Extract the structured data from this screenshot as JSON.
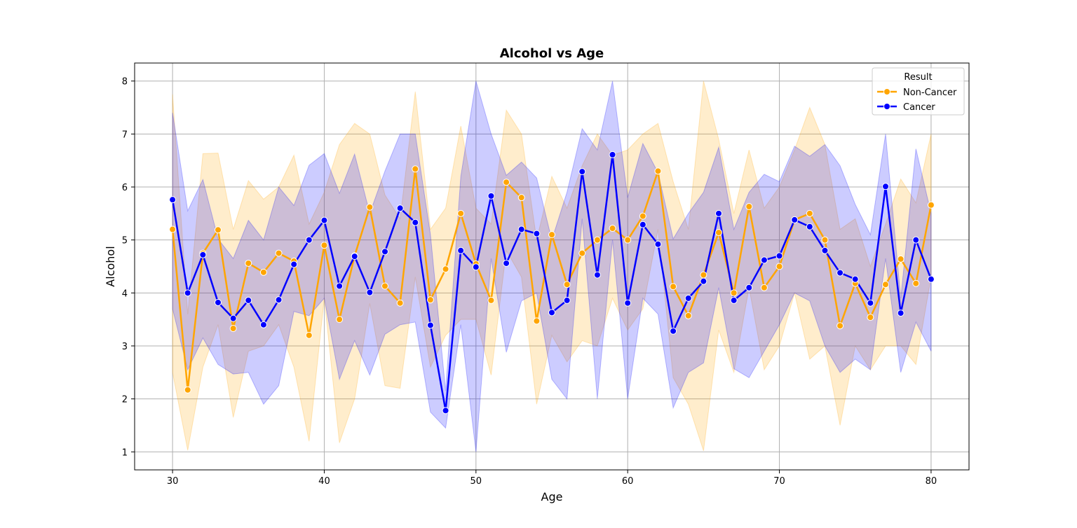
{
  "chart_data": {
    "type": "line",
    "title": "Alcohol vs Age",
    "xlabel": "Age",
    "ylabel": "Alcohol",
    "xlim": [
      27.5,
      82.5
    ],
    "ylim": [
      0.66,
      8.34
    ],
    "xticks": [
      30,
      40,
      50,
      60,
      70,
      80
    ],
    "yticks": [
      1,
      2,
      3,
      4,
      5,
      6,
      7,
      8
    ],
    "grid": true,
    "legend": {
      "title": "Result",
      "placement": "top-right"
    },
    "x": [
      30,
      31,
      32,
      33,
      34,
      35,
      36,
      37,
      38,
      39,
      40,
      41,
      42,
      43,
      44,
      45,
      46,
      47,
      48,
      49,
      50,
      51,
      52,
      53,
      54,
      55,
      56,
      57,
      58,
      59,
      60,
      61,
      62,
      63,
      64,
      65,
      66,
      67,
      68,
      69,
      70,
      71,
      72,
      73,
      74,
      75,
      76,
      77,
      78,
      79,
      80
    ],
    "series": [
      {
        "name": "Non-Cancer",
        "color": "#ffa500",
        "values": [
          5.2,
          2.17,
          4.75,
          5.19,
          3.33,
          4.56,
          4.39,
          4.75,
          4.6,
          3.2,
          4.9,
          3.5,
          4.7,
          5.62,
          4.13,
          3.81,
          6.34,
          3.87,
          4.45,
          5.5,
          4.55,
          3.86,
          6.09,
          5.8,
          3.47,
          5.1,
          4.16,
          4.75,
          5.0,
          5.22,
          5.0,
          5.45,
          6.3,
          4.12,
          3.57,
          4.34,
          5.14,
          4.0,
          5.63,
          4.1,
          4.5,
          5.38,
          5.5,
          5.0,
          3.38,
          4.18,
          3.54,
          4.16,
          4.64,
          4.18,
          5.66
        ],
        "lower": [
          2.5,
          1.03,
          2.6,
          3.4,
          1.65,
          2.9,
          3.0,
          3.4,
          2.6,
          1.2,
          3.9,
          1.17,
          2.0,
          3.8,
          2.25,
          2.2,
          4.3,
          2.6,
          3.2,
          3.5,
          3.5,
          2.45,
          4.8,
          4.3,
          1.9,
          3.2,
          2.7,
          3.1,
          3.0,
          3.9,
          3.3,
          3.7,
          5.2,
          2.4,
          1.9,
          1.02,
          3.3,
          2.5,
          4.1,
          2.55,
          3.0,
          4.0,
          2.75,
          3.0,
          1.5,
          3.0,
          2.55,
          3.0,
          3.0,
          2.65,
          4.3
        ],
        "upper": [
          7.75,
          3.6,
          6.63,
          6.64,
          5.2,
          6.12,
          5.77,
          6.0,
          6.6,
          5.3,
          5.9,
          6.8,
          7.2,
          7.0,
          5.85,
          5.4,
          7.8,
          5.2,
          5.6,
          7.15,
          5.6,
          5.3,
          7.45,
          7.0,
          5.0,
          6.2,
          5.6,
          6.4,
          7.0,
          6.6,
          6.7,
          7.0,
          7.2,
          6.1,
          5.2,
          8.0,
          6.9,
          5.5,
          6.7,
          5.6,
          6.0,
          6.7,
          7.5,
          6.8,
          5.2,
          5.4,
          4.5,
          5.3,
          6.15,
          5.7,
          7.0
        ]
      },
      {
        "name": "Cancer",
        "color": "#0000ff",
        "values": [
          5.76,
          4.0,
          4.72,
          3.82,
          3.52,
          3.86,
          3.4,
          3.87,
          4.54,
          5.0,
          5.37,
          4.13,
          4.69,
          4.01,
          4.78,
          5.6,
          5.33,
          3.39,
          1.78,
          4.8,
          4.49,
          5.83,
          4.56,
          5.2,
          5.12,
          3.63,
          3.86,
          6.29,
          4.34,
          6.61,
          3.81,
          5.29,
          4.92,
          3.28,
          3.9,
          4.22,
          5.5,
          3.86,
          4.1,
          4.62,
          4.7,
          5.38,
          5.25,
          4.8,
          4.38,
          4.26,
          3.81,
          6.01,
          3.62,
          5.0,
          4.26
        ],
        "lower": [
          3.7,
          2.55,
          3.15,
          2.65,
          2.47,
          2.5,
          1.9,
          2.25,
          3.65,
          3.57,
          3.9,
          2.37,
          3.1,
          2.45,
          3.22,
          3.4,
          3.45,
          1.75,
          1.45,
          3.4,
          1.0,
          4.65,
          2.88,
          3.85,
          4.0,
          2.37,
          2.0,
          5.4,
          2.0,
          5.0,
          2.0,
          3.9,
          3.6,
          1.83,
          2.5,
          2.68,
          4.1,
          2.57,
          2.4,
          2.9,
          3.4,
          4.0,
          3.85,
          3.0,
          2.5,
          2.75,
          2.55,
          4.65,
          2.5,
          3.45,
          2.9
        ],
        "upper": [
          7.4,
          5.55,
          6.14,
          5.02,
          4.65,
          5.37,
          5.0,
          6.0,
          5.65,
          6.41,
          6.63,
          5.88,
          6.62,
          5.5,
          6.3,
          7.0,
          7.0,
          5.1,
          2.15,
          6.2,
          8.0,
          7.0,
          6.22,
          6.47,
          6.17,
          5.0,
          5.9,
          7.1,
          6.7,
          8.0,
          5.8,
          6.82,
          6.27,
          5.02,
          5.5,
          5.9,
          6.75,
          5.2,
          5.9,
          6.24,
          6.1,
          6.77,
          6.58,
          6.8,
          6.4,
          5.67,
          5.1,
          7.0,
          3.9,
          6.72,
          5.5
        ]
      }
    ]
  }
}
